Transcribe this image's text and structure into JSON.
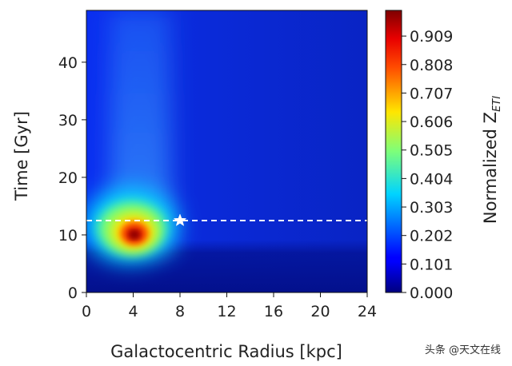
{
  "chart_data": {
    "type": "heatmap",
    "title": "",
    "xlabel": "Galactocentric Radius [kpc]",
    "ylabel": "Time [Gyr]",
    "xlim": [
      0,
      24
    ],
    "ylim": [
      0,
      49
    ],
    "x_ticks": [
      "0",
      "4",
      "8",
      "12",
      "16",
      "20",
      "24"
    ],
    "y_ticks": [
      "0",
      "10",
      "20",
      "30",
      "40"
    ],
    "colorbar": {
      "label_main": "Normalized Z",
      "label_sub": "ETI",
      "ticks": [
        "0.000",
        "0.101",
        "0.202",
        "0.303",
        "0.404",
        "0.505",
        "0.606",
        "0.707",
        "0.808",
        "0.909"
      ],
      "tick_values": [
        0.0,
        0.101,
        0.202,
        0.303,
        0.404,
        0.505,
        0.606,
        0.707,
        0.808,
        0.909
      ],
      "range": [
        0,
        1
      ],
      "colormap": "jet"
    },
    "peak": {
      "radius": 4,
      "time": 10,
      "value": 1.0
    },
    "sun_marker": {
      "radius": 8,
      "time": 12.5,
      "symbol": "star"
    },
    "reference_line": {
      "time": 12.5,
      "style": "dashed",
      "color": "#ffffff"
    }
  },
  "watermark": "头条 @天文在线"
}
